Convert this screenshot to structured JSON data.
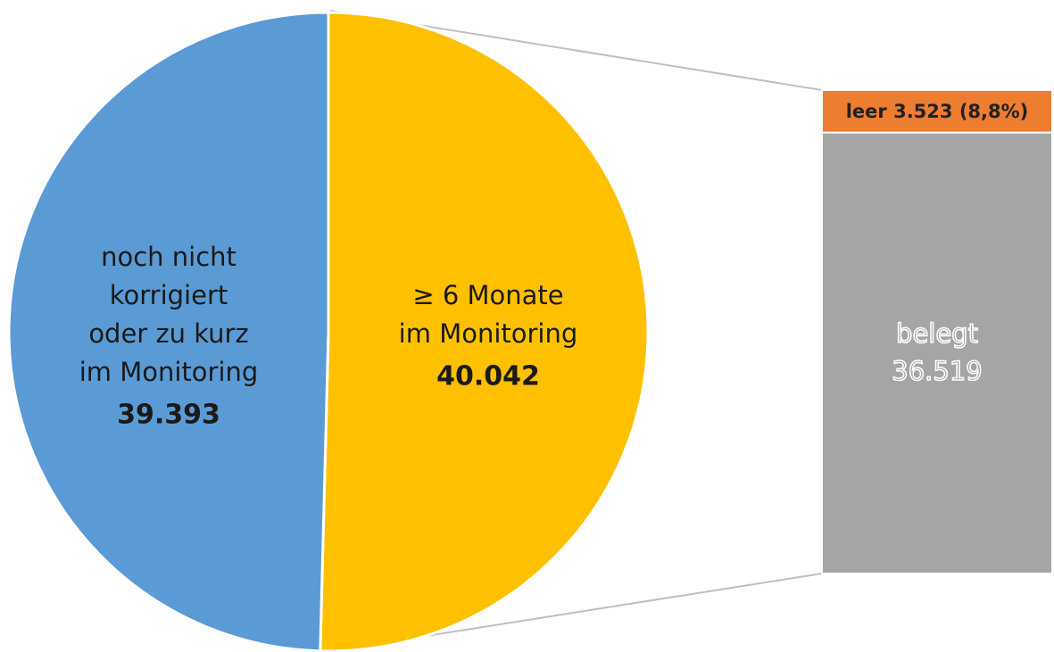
{
  "chart_data": [
    {
      "type": "pie",
      "categories": [
        [
          "noch nicht",
          "korrigiert",
          "oder zu kurz",
          "im Monitoring"
        ],
        [
          "≥ 6 Monate",
          "im Monitoring"
        ]
      ],
      "values": [
        39393,
        40042
      ],
      "value_labels": [
        "39.393",
        "40.042"
      ],
      "colors": [
        "#5b9bd5",
        "#ffc000"
      ]
    },
    {
      "type": "bar",
      "series": [
        {
          "name": "leer",
          "color": "#ed7d31",
          "values": [
            3523
          ],
          "value_labels": [
            "3.523 (8,8%)"
          ]
        },
        {
          "name": "belegt",
          "color": "#a5a5a5",
          "values": [
            36519
          ],
          "value_labels": [
            "36.519"
          ]
        }
      ]
    }
  ]
}
